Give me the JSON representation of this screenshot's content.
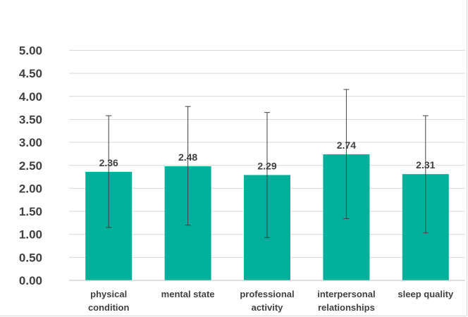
{
  "chart_data": {
    "type": "bar",
    "categories": [
      [
        "physical",
        "condition"
      ],
      [
        "mental state"
      ],
      [
        "professional",
        "activity"
      ],
      [
        "interpersonal",
        "relationships"
      ],
      [
        "sleep quality"
      ]
    ],
    "values": [
      2.36,
      2.48,
      2.29,
      2.74,
      2.31
    ],
    "value_labels": [
      "2.36",
      "2.48",
      "2.29",
      "2.74",
      "2.31"
    ],
    "error_bars": [
      {
        "low": 1.15,
        "high": 3.58
      },
      {
        "low": 1.2,
        "high": 3.78
      },
      {
        "low": 0.93,
        "high": 3.65
      },
      {
        "low": 1.34,
        "high": 4.15
      },
      {
        "low": 1.03,
        "high": 3.58
      }
    ],
    "yticks": [
      "0.00",
      "0.50",
      "1.00",
      "1.50",
      "2.00",
      "2.50",
      "3.00",
      "3.50",
      "4.00",
      "4.50",
      "5.00"
    ],
    "ylim": [
      0,
      5
    ],
    "grid": true,
    "legend": "none",
    "colors": {
      "bar": "#00b09b",
      "grid": "#d9d9d9",
      "axis": "#bfbfbf",
      "error": "#404040",
      "text": "#404040"
    }
  }
}
